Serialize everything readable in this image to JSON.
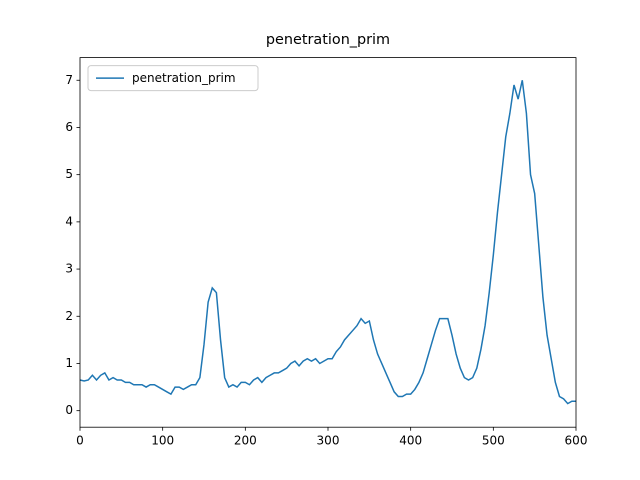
{
  "chart_data": {
    "type": "line",
    "title": "penetration_prim",
    "x": [
      0,
      5,
      10,
      15,
      20,
      25,
      30,
      35,
      40,
      45,
      50,
      55,
      60,
      65,
      70,
      75,
      80,
      85,
      90,
      95,
      100,
      105,
      110,
      115,
      120,
      125,
      130,
      135,
      140,
      145,
      150,
      155,
      160,
      165,
      170,
      175,
      180,
      185,
      190,
      195,
      200,
      205,
      210,
      215,
      220,
      225,
      230,
      235,
      240,
      245,
      250,
      255,
      260,
      265,
      270,
      275,
      280,
      285,
      290,
      295,
      300,
      305,
      310,
      315,
      320,
      325,
      330,
      335,
      340,
      345,
      350,
      355,
      360,
      365,
      370,
      375,
      380,
      385,
      390,
      395,
      400,
      405,
      410,
      415,
      420,
      425,
      430,
      435,
      440,
      445,
      450,
      455,
      460,
      465,
      470,
      475,
      480,
      485,
      490,
      495,
      500,
      505,
      510,
      515,
      520,
      525,
      530,
      535,
      540,
      545,
      550,
      555,
      560,
      565,
      570,
      575,
      580,
      585,
      590,
      595,
      600
    ],
    "series": [
      {
        "name": "penetration_prim",
        "color": "#1f77b4",
        "values": [
          0.65,
          0.63,
          0.65,
          0.75,
          0.65,
          0.75,
          0.8,
          0.65,
          0.7,
          0.65,
          0.65,
          0.6,
          0.6,
          0.55,
          0.55,
          0.55,
          0.5,
          0.55,
          0.55,
          0.5,
          0.45,
          0.4,
          0.35,
          0.5,
          0.5,
          0.45,
          0.5,
          0.55,
          0.55,
          0.7,
          1.4,
          2.3,
          2.6,
          2.5,
          1.5,
          0.7,
          0.5,
          0.55,
          0.5,
          0.6,
          0.6,
          0.55,
          0.65,
          0.7,
          0.6,
          0.7,
          0.75,
          0.8,
          0.8,
          0.85,
          0.9,
          1.0,
          1.05,
          0.95,
          1.05,
          1.1,
          1.05,
          1.1,
          1.0,
          1.05,
          1.1,
          1.1,
          1.25,
          1.35,
          1.5,
          1.6,
          1.7,
          1.8,
          1.95,
          1.85,
          1.9,
          1.5,
          1.2,
          1.0,
          0.8,
          0.6,
          0.4,
          0.3,
          0.3,
          0.35,
          0.35,
          0.45,
          0.6,
          0.8,
          1.1,
          1.4,
          1.7,
          1.95,
          1.95,
          1.95,
          1.6,
          1.2,
          0.9,
          0.7,
          0.65,
          0.7,
          0.9,
          1.3,
          1.8,
          2.5,
          3.3,
          4.2,
          5.0,
          5.8,
          6.3,
          6.9,
          6.6,
          7.0,
          6.3,
          5.0,
          4.6,
          3.5,
          2.4,
          1.6,
          1.1,
          0.6,
          0.3,
          0.25,
          0.15,
          0.2,
          0.2
        ]
      }
    ],
    "xlim": [
      0,
      600
    ],
    "xticks": [
      0,
      100,
      200,
      300,
      400,
      500,
      600
    ],
    "ylim": [
      -0.35,
      7.48
    ],
    "yticks": [
      0,
      1,
      2,
      3,
      4,
      5,
      6,
      7
    ],
    "legend": "upper left"
  }
}
